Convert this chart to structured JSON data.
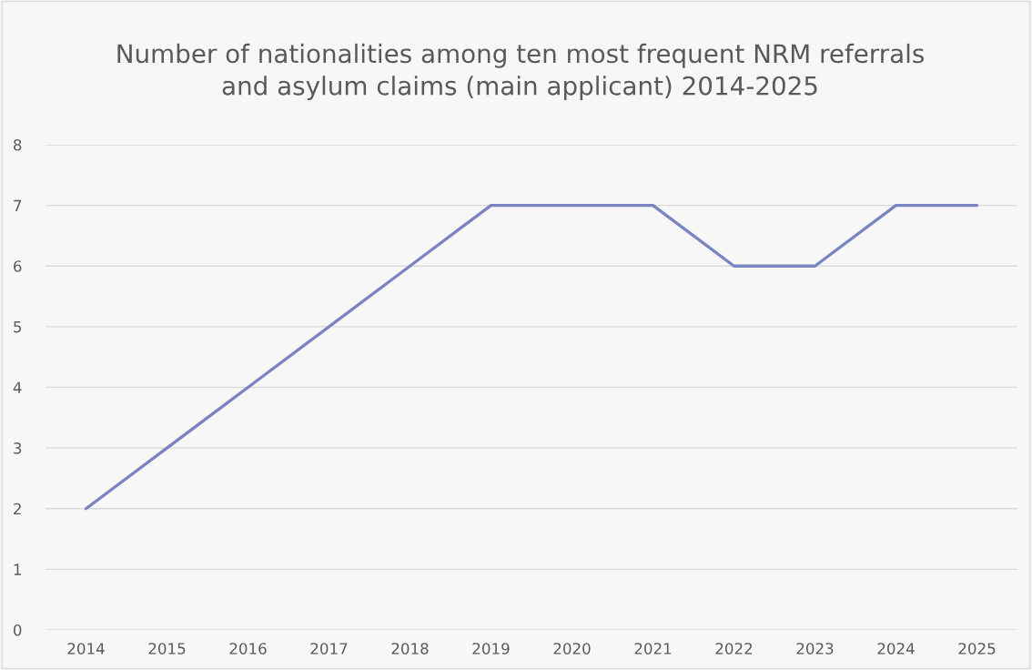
{
  "chart_data": {
    "type": "line",
    "title": "Number of nationalities among ten most frequent NRM referrals\nand asylum claims (main applicant) 2014-2025",
    "categories": [
      "2014",
      "2015",
      "2016",
      "2017",
      "2018",
      "2019",
      "2020",
      "2021",
      "2022",
      "2023",
      "2024",
      "2025"
    ],
    "series": [
      {
        "color": "#7b84c2",
        "values": [
          2,
          3,
          4,
          5,
          6,
          7,
          7,
          7,
          6,
          6,
          7,
          7
        ]
      }
    ],
    "ylim": [
      0,
      8
    ],
    "yticks": [
      0,
      1,
      2,
      3,
      4,
      5,
      6,
      7,
      8
    ],
    "grid": "y",
    "legend": false,
    "marker": "none",
    "line_style": "solid"
  }
}
